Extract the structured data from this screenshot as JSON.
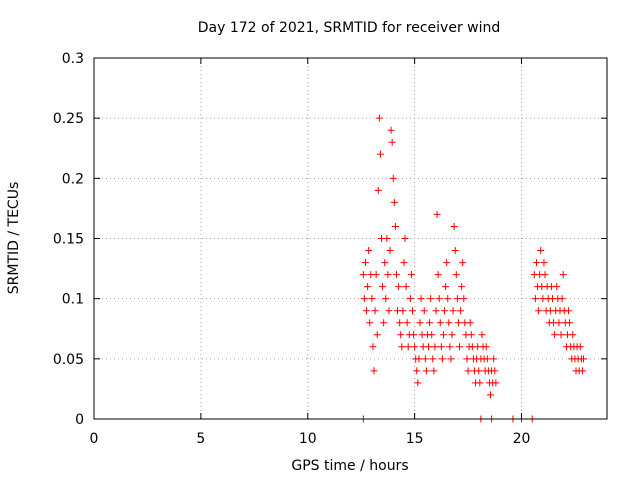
{
  "chart_data": {
    "type": "scatter",
    "title": "Day 172 of 2021, SRMTID for receiver wind",
    "xlabel": "GPS time / hours",
    "ylabel": "SRMTID / TECUs",
    "xlim": [
      0,
      24
    ],
    "ylim": [
      0,
      0.3
    ],
    "xticks": [
      0,
      5,
      10,
      15,
      20
    ],
    "yticks": [
      0,
      0.05,
      0.1,
      0.15,
      0.2,
      0.25,
      0.3
    ],
    "xtick_labels": [
      "0",
      "5",
      "10",
      "15",
      "20"
    ],
    "ytick_labels": [
      "0",
      "0.05",
      "0.1",
      "0.15",
      "0.2",
      "0.25",
      "0.3"
    ],
    "grid": true,
    "marker": "plus",
    "color": "#ff0000",
    "series": [
      {
        "x": [
          12.6,
          12.65,
          12.7,
          12.75,
          12.8,
          12.85,
          12.9,
          12.95,
          13.0,
          13.05,
          13.1,
          13.15,
          13.2,
          13.25,
          13.3,
          13.35,
          13.4,
          13.45,
          13.5,
          13.55,
          13.6,
          13.65,
          13.7,
          13.75,
          13.8,
          13.85,
          13.9,
          13.95,
          14.0,
          14.05,
          14.1,
          14.15,
          14.2,
          14.25,
          14.3,
          14.35,
          14.4,
          14.45,
          14.5,
          14.55,
          14.6,
          14.65,
          14.7,
          14.75,
          14.8,
          14.85,
          14.9,
          14.95,
          15.0,
          15.05,
          15.1,
          15.15,
          15.2,
          15.25,
          15.3,
          15.35,
          15.4,
          15.45,
          15.5,
          15.55,
          15.6,
          15.65,
          15.7,
          15.75,
          15.8,
          15.85,
          15.9,
          15.95,
          16.0,
          16.05,
          16.1,
          16.15,
          16.2,
          16.25,
          16.3,
          16.35,
          16.4,
          16.45,
          16.5,
          16.55,
          16.6,
          16.65,
          16.7,
          16.75,
          16.8,
          16.85,
          16.9,
          16.95,
          17.0,
          17.05,
          17.1,
          17.15,
          17.2,
          17.25,
          17.3,
          17.35,
          17.4,
          17.45,
          17.5,
          17.55,
          17.6,
          17.65,
          17.7,
          17.75,
          17.8,
          17.85,
          17.9,
          17.95,
          18.0,
          18.05,
          18.1,
          18.15,
          18.2,
          18.25,
          18.3,
          18.35,
          18.4,
          18.45,
          18.5,
          18.55,
          18.6,
          18.65,
          18.7,
          18.75,
          18.8,
          20.6,
          20.65,
          20.7,
          20.75,
          20.8,
          20.85,
          20.9,
          20.95,
          21.0,
          21.05,
          21.1,
          21.15,
          21.2,
          21.25,
          21.3,
          21.35,
          21.4,
          21.45,
          21.5,
          21.55,
          21.6,
          21.65,
          21.7,
          21.75,
          21.8,
          21.85,
          21.9,
          21.95,
          22.0,
          22.05,
          22.1,
          22.15,
          22.2,
          22.25,
          22.3,
          22.35,
          22.4,
          22.45,
          22.5,
          22.55,
          22.6,
          22.65,
          22.7,
          22.75,
          22.8,
          22.85,
          22.9
        ],
        "y": [
          0.12,
          0.1,
          0.13,
          0.09,
          0.11,
          0.14,
          0.08,
          0.12,
          0.1,
          0.06,
          0.04,
          0.09,
          0.12,
          0.07,
          0.19,
          0.25,
          0.22,
          0.15,
          0.11,
          0.08,
          0.13,
          0.1,
          0.15,
          0.12,
          0.09,
          0.14,
          0.24,
          0.23,
          0.2,
          0.18,
          0.16,
          0.12,
          0.09,
          0.11,
          0.08,
          0.07,
          0.06,
          0.09,
          0.13,
          0.15,
          0.11,
          0.08,
          0.06,
          0.07,
          0.1,
          0.12,
          0.09,
          0.07,
          0.06,
          0.05,
          0.04,
          0.03,
          0.05,
          0.08,
          0.1,
          0.07,
          0.06,
          0.09,
          0.05,
          0.04,
          0.07,
          0.06,
          0.08,
          0.1,
          0.07,
          0.05,
          0.04,
          0.06,
          0.09,
          0.17,
          0.12,
          0.1,
          0.08,
          0.06,
          0.05,
          0.07,
          0.09,
          0.11,
          0.13,
          0.1,
          0.08,
          0.06,
          0.05,
          0.07,
          0.09,
          0.16,
          0.14,
          0.12,
          0.1,
          0.08,
          0.06,
          0.09,
          0.11,
          0.13,
          0.1,
          0.08,
          0.07,
          0.05,
          0.04,
          0.06,
          0.08,
          0.07,
          0.06,
          0.05,
          0.04,
          0.03,
          0.05,
          0.06,
          0.04,
          0.03,
          0.05,
          0.07,
          0.06,
          0.05,
          0.04,
          0.06,
          0.05,
          0.04,
          0.03,
          0.02,
          0.04,
          0.03,
          0.05,
          0.04,
          0.03,
          0.12,
          0.1,
          0.13,
          0.11,
          0.09,
          0.12,
          0.14,
          0.11,
          0.1,
          0.13,
          0.12,
          0.09,
          0.11,
          0.1,
          0.08,
          0.09,
          0.11,
          0.1,
          0.08,
          0.07,
          0.09,
          0.11,
          0.1,
          0.08,
          0.09,
          0.07,
          0.1,
          0.12,
          0.09,
          0.08,
          0.06,
          0.07,
          0.09,
          0.08,
          0.06,
          0.05,
          0.07,
          0.06,
          0.05,
          0.04,
          0.06,
          0.05,
          0.04,
          0.06,
          0.05,
          0.04,
          0.05
        ]
      },
      {
        "x": [
          12.6,
          18.1,
          18.6,
          19.6,
          20.0,
          20.5
        ],
        "y": [
          0,
          0,
          0,
          0,
          0,
          0
        ]
      }
    ]
  }
}
